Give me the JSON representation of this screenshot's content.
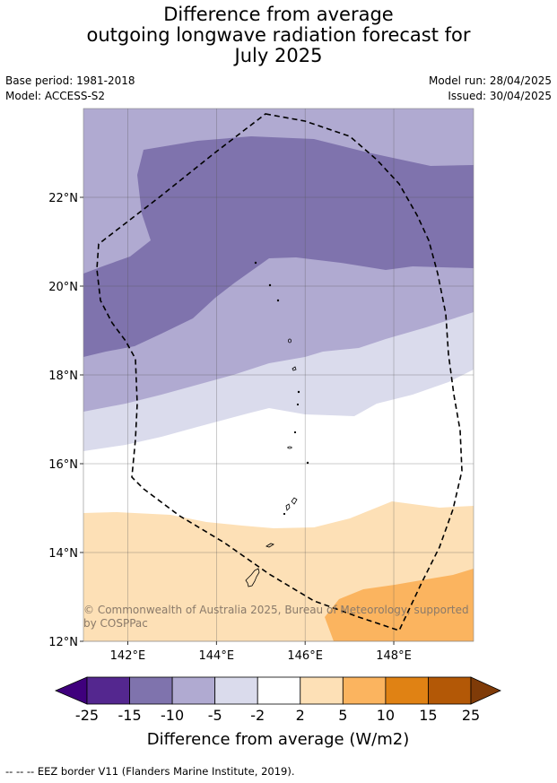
{
  "title_lines": [
    "Difference from average",
    "outgoing longwave radiation forecast for",
    "July 2025"
  ],
  "meta": {
    "base_period": "Base period: 1981-2018",
    "model": "Model: ACCESS-S2",
    "model_run": "Model run: 28/04/2025",
    "issued": "Issued: 30/04/2025"
  },
  "copyright": [
    "© Commonwealth of Australia 2025, Bureau of Meteorology, supported",
    "by COSPPac"
  ],
  "footer": "--  --  -- EEZ border V11 (Flanders Marine Institute, 2019).",
  "chart_data": {
    "type": "heatmap",
    "map_region": "Northern Mariana Islands and Guam",
    "lon_range": [
      141,
      149.8
    ],
    "lat_range": [
      12,
      24
    ],
    "x_ticks": [
      {
        "value": 142,
        "label": "142°E"
      },
      {
        "value": 144,
        "label": "144°E"
      },
      {
        "value": 146,
        "label": "146°E"
      },
      {
        "value": 148,
        "label": "148°E"
      }
    ],
    "y_ticks": [
      {
        "value": 22,
        "label": "22°N"
      },
      {
        "value": 20,
        "label": "20°N"
      },
      {
        "value": 18,
        "label": "18°N"
      },
      {
        "value": 16,
        "label": "16°N"
      },
      {
        "value": 14,
        "label": "14°N"
      },
      {
        "value": 12,
        "label": "12°N"
      }
    ],
    "grid": true,
    "colorbar": {
      "label": "Difference from average (W/m2)",
      "ticks": [
        "-25",
        "-15",
        "-10",
        "-5",
        "-2",
        "2",
        "5",
        "10",
        "15",
        "25"
      ],
      "colors": [
        "#3f007d",
        "#54278f",
        "#7f73ad",
        "#b0aad1",
        "#dadbec",
        "#ffffff",
        "#fde0b6",
        "#fbb45f",
        "#e08214",
        "#b35806",
        "#7f3b08"
      ],
      "extend": "both"
    },
    "regions": [
      {
        "range": "-10 to -5",
        "color": "#b0aad1"
      },
      {
        "range": "-15 to -10",
        "color": "#7f73ad"
      },
      {
        "range": "-5 to -2",
        "color": "#dadbec"
      },
      {
        "range": "-2 to 2",
        "color": "#ffffff"
      },
      {
        "range": "2 to 5",
        "color": "#fde0b6"
      },
      {
        "range": "5 to 10",
        "color": "#fbb45f"
      }
    ]
  }
}
